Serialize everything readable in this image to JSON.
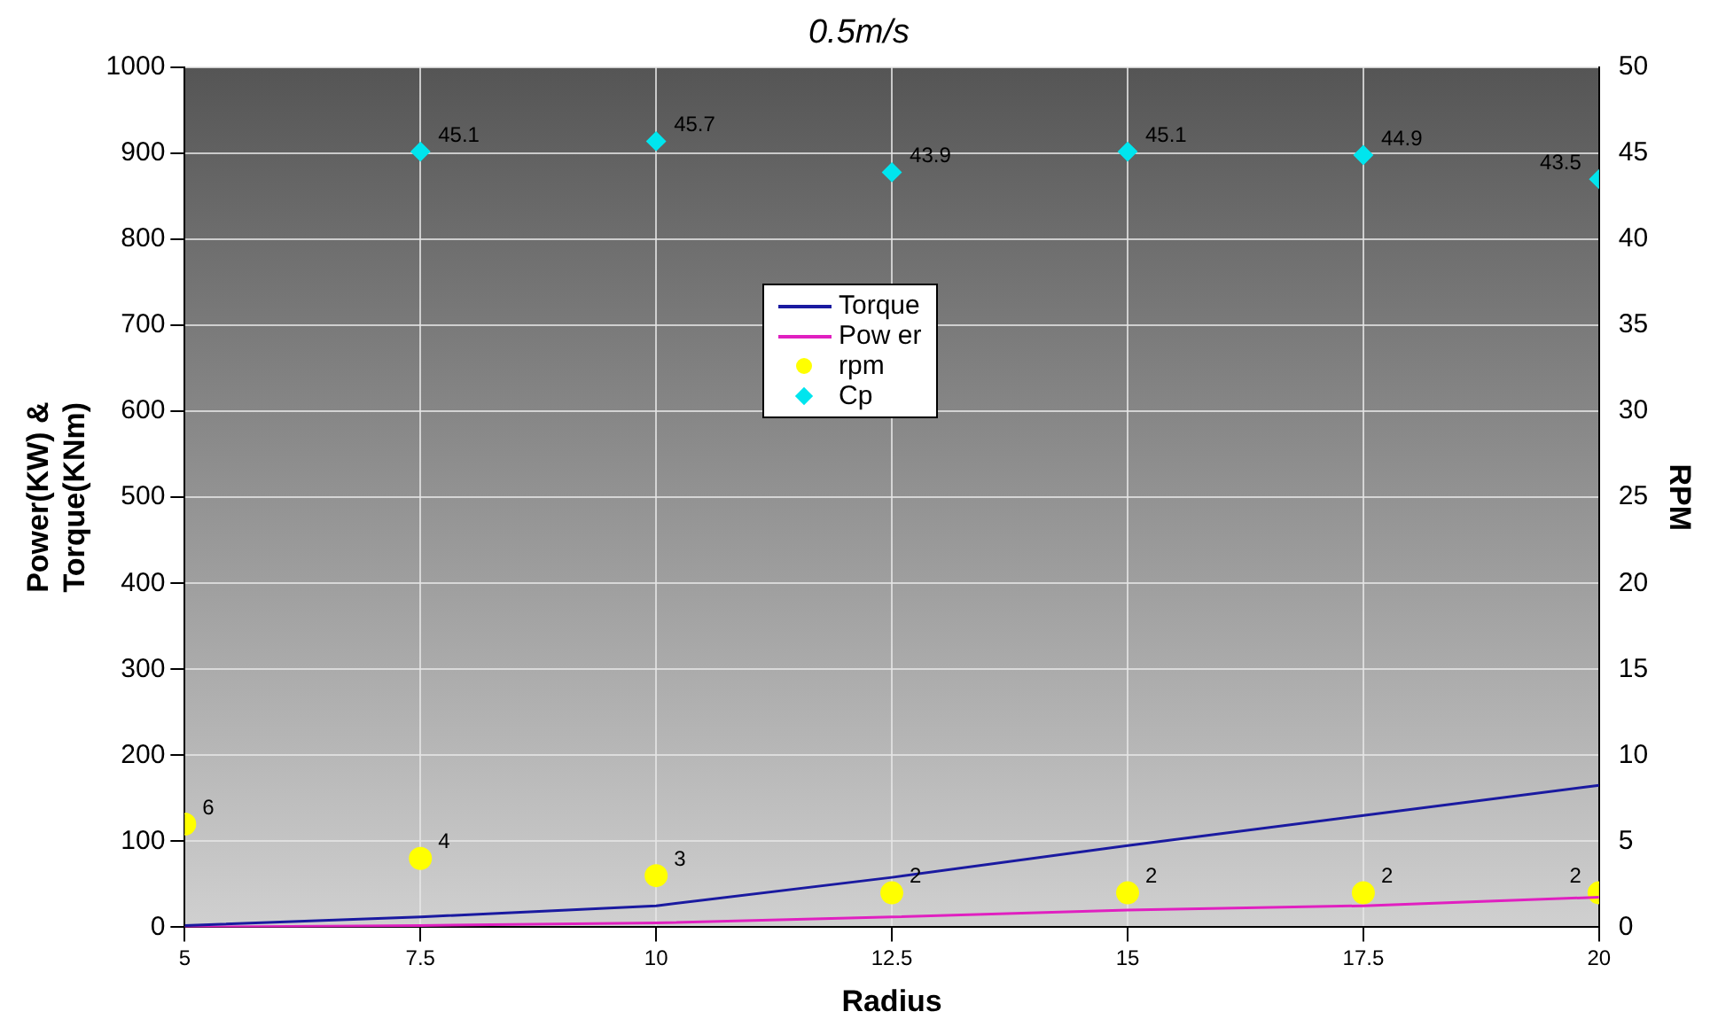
{
  "chart_data": {
    "type": "line",
    "title": "0.5m/s",
    "xlabel": "Radius",
    "ylabel": "Power(KW) &\nTorque(KNm)",
    "y2label": "RPM",
    "x": [
      5,
      7.5,
      10,
      12.5,
      15,
      17.5,
      20
    ],
    "xlim": [
      5,
      20
    ],
    "xticks": [
      5,
      7.5,
      10,
      12.5,
      15,
      17.5,
      20
    ],
    "ylim": [
      0,
      1000
    ],
    "yticks": [
      0,
      100,
      200,
      300,
      400,
      500,
      600,
      700,
      800,
      900,
      1000
    ],
    "y2lim": [
      0,
      50
    ],
    "y2ticks": [
      0,
      5,
      10,
      15,
      20,
      25,
      30,
      35,
      40,
      45,
      50
    ],
    "grid": true,
    "legend": "top",
    "series": [
      {
        "name": "Torque",
        "color": "#1a1aa0",
        "marker": "none",
        "values": [
          2,
          12,
          25,
          58,
          95,
          130,
          165
        ]
      },
      {
        "name": "Pow er",
        "color": "#e020c0",
        "marker": "none",
        "values": [
          0,
          2,
          5,
          12,
          20,
          25,
          35
        ]
      },
      {
        "name": "rpm",
        "type": "scatter",
        "color": "#ffff00",
        "marker": "circle",
        "axis": "y2",
        "data_labels": true,
        "values": [
          6,
          4,
          3,
          2,
          2,
          2,
          2
        ]
      },
      {
        "name": "Cp",
        "type": "scatter",
        "color": "#00e5ee",
        "marker": "diamond",
        "axis": "y2",
        "data_labels": true,
        "x": [
          7.5,
          10,
          12.5,
          15,
          17.5,
          20
        ],
        "values": [
          45.1,
          45.7,
          43.9,
          45.1,
          44.9,
          43.5
        ]
      }
    ]
  }
}
